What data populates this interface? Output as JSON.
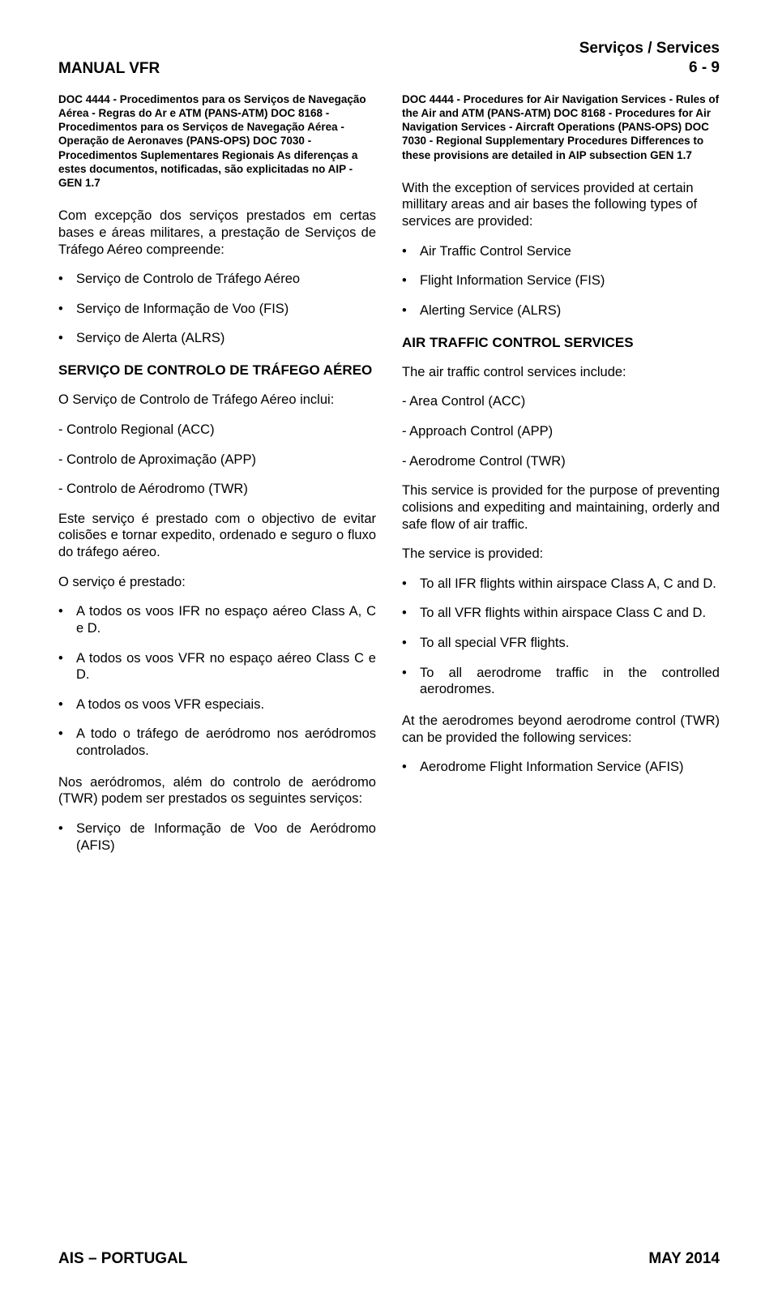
{
  "header": {
    "left": "MANUAL VFR",
    "right_top": "Serviços / Services",
    "right_bottom": "6 - 9"
  },
  "left": {
    "refs": "DOC 4444 - Procedimentos para os Serviços de Navegação Aérea - Regras do Ar e ATM (PANS-ATM)\nDOC 8168 - Procedimentos para os Serviços de Navegação Aérea - Operação de Aeronaves (PANS-OPS)\nDOC 7030 - Procedimentos Suplementares Regionais\nAs diferenças a estes documentos, notificadas, são explicitadas no AIP - GEN 1.7",
    "intro": "Com excepção dos serviços prestados em certas bases e áreas militares, a prestação de Serviços de Tráfego Aéreo compreende:",
    "services": [
      "Serviço de Controlo de Tráfego Aéreo",
      "Serviço de Informação de Voo (FIS)",
      "Serviço de Alerta (ALRS)"
    ],
    "heading": "SERVIÇO DE CONTROLO DE TRÁFEGO AÉREO",
    "includes": "O Serviço de Controlo de Tráfego Aéreo inclui:",
    "controls": [
      "- Controlo Regional (ACC)",
      "- Controlo de Aproximação (APP)",
      "- Controlo de Aérodromo (TWR)"
    ],
    "purpose": "Este serviço é prestado com o objectivo de evitar colisões e tornar expedito, ordenado e seguro o fluxo do tráfego aéreo.",
    "provided": "O serviço é prestado:",
    "provided_list": [
      "A todos os voos IFR no espaço aéreo Class A, C e D.",
      "A todos os voos VFR no espaço aéreo Class C e D.",
      "A todos os voos VFR especiais.",
      "A todo o tráfego de aeródromo nos aeródromos controlados."
    ],
    "beyond": "Nos aeródromos, além do controlo de aeródromo (TWR) podem ser prestados os seguintes serviços:",
    "beyond_list": [
      "Serviço de Informação de Voo de Aeródromo (AFIS)"
    ]
  },
  "right": {
    "refs": "DOC 4444 - Procedures for Air Navigation Services - Rules of the Air and ATM (PANS-ATM)\nDOC 8168 - Procedures for Air Navigation Services - Aircraft Operations (PANS-OPS)\nDOC 7030 - Regional Supplementary Procedures\nDifferences to these provisions are detailed in AIP subsection GEN 1.7",
    "intro": "With the exception of services provided at certain millitary areas and air bases the following types of services are provided:",
    "services": [
      "Air Traffic Control Service",
      "Flight Information Service (FIS)",
      "Alerting Service (ALRS)"
    ],
    "heading": "AIR TRAFFIC CONTROL SERVICES",
    "includes": "The air traffic control services include:",
    "controls": [
      "- Area Control (ACC)",
      "- Approach Control (APP)",
      "- Aerodrome Control (TWR)"
    ],
    "purpose": "This service is provided for the purpose of preventing colisions and expediting and maintaining, orderly and safe flow of air traffic.",
    "provided": "The service is provided:",
    "provided_list": [
      "To all IFR flights within airspace Class A, C and D.",
      "To all VFR flights within airspace Class C and D.",
      "To all special VFR flights.",
      "To all aerodrome traffic in the controlled aerodromes."
    ],
    "beyond": "At the aerodromes beyond aerodrome control (TWR) can be provided the following services:",
    "beyond_list": [
      "Aerodrome Flight Information Service (AFIS)"
    ]
  },
  "footer": {
    "left": "AIS – PORTUGAL",
    "right": "MAY 2014"
  }
}
